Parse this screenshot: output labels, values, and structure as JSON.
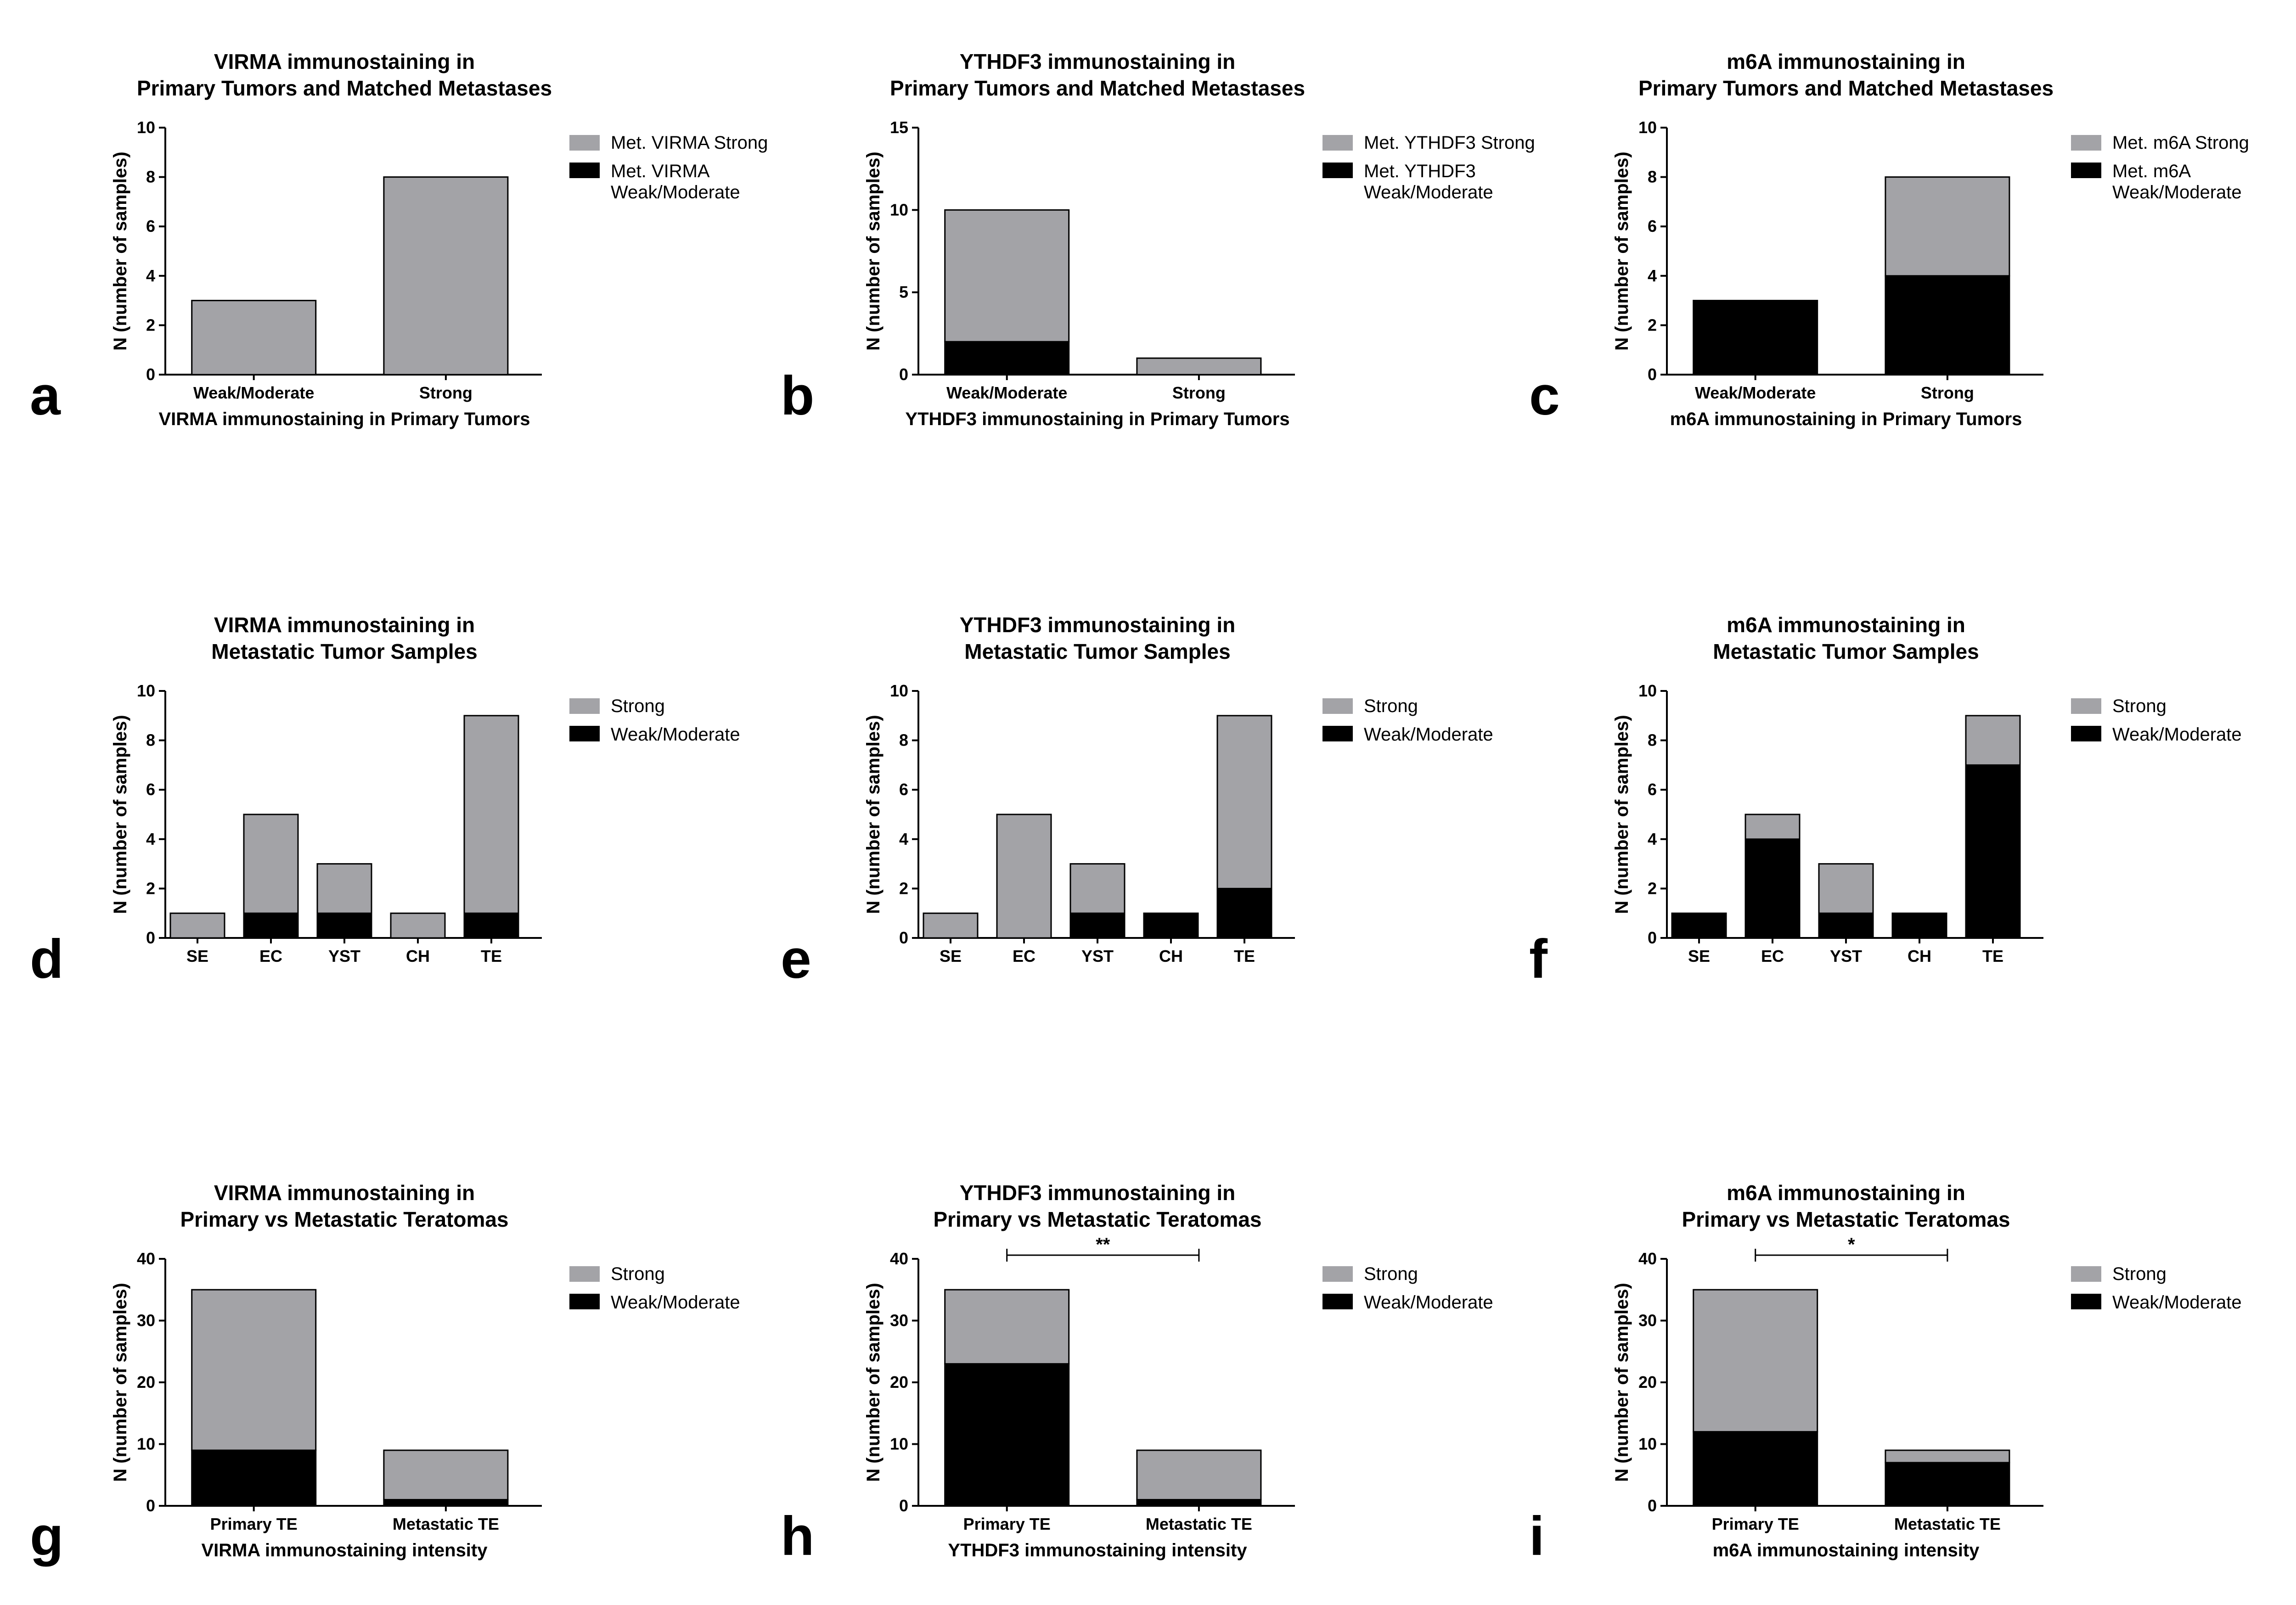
{
  "colors": {
    "strong": "#a3a3a7",
    "weak": "#000000"
  },
  "chart_data": [
    {
      "panel": "a",
      "type": "bar",
      "stacked": true,
      "title": [
        "VIRMA immunostaining in",
        "Primary Tumors and Matched Metastases"
      ],
      "xlabel": "VIRMA immunostaining in Primary Tumors",
      "ylabel": "N (number of samples)",
      "ylim": [
        0,
        10
      ],
      "yticks": [
        "0",
        "2",
        "4",
        "6",
        "8",
        "10"
      ],
      "categories": [
        "Weak/Moderate",
        "Strong"
      ],
      "legend": [
        "Met. VIRMA Strong",
        "Met. VIRMA\nWeak/Moderate"
      ],
      "series": [
        {
          "values": [
            0,
            0
          ]
        },
        {
          "values": [
            3,
            8
          ]
        }
      ]
    },
    {
      "panel": "b",
      "type": "bar",
      "stacked": true,
      "title": [
        "YTHDF3 immunostaining in",
        "Primary Tumors and Matched Metastases"
      ],
      "xlabel": "YTHDF3 immunostaining in Primary Tumors",
      "ylabel": "N (number of samples)",
      "ylim": [
        0,
        15
      ],
      "yticks": [
        "0",
        "5",
        "10",
        "15"
      ],
      "categories": [
        "Weak/Moderate",
        "Strong"
      ],
      "legend": [
        "Met. YTHDF3 Strong",
        "Met. YTHDF3\nWeak/Moderate"
      ],
      "series": [
        {
          "values": [
            2,
            0
          ]
        },
        {
          "values": [
            8,
            1
          ]
        }
      ]
    },
    {
      "panel": "c",
      "type": "bar",
      "stacked": true,
      "title": [
        "m6A immunostaining in",
        "Primary Tumors and Matched Metastases"
      ],
      "xlabel": "m6A immunostaining in Primary Tumors",
      "ylabel": "N (number of samples)",
      "ylim": [
        0,
        10
      ],
      "yticks": [
        "0",
        "2",
        "4",
        "6",
        "8",
        "10"
      ],
      "categories": [
        "Weak/Moderate",
        "Strong"
      ],
      "legend": [
        "Met. m6A Strong",
        "Met. m6A\nWeak/Moderate"
      ],
      "series": [
        {
          "values": [
            3,
            4
          ]
        },
        {
          "values": [
            0,
            4
          ]
        }
      ]
    },
    {
      "panel": "d",
      "type": "bar",
      "stacked": true,
      "title": [
        "VIRMA immunostaining in",
        "Metastatic Tumor Samples"
      ],
      "xlabel": "",
      "ylabel": "N (number of samples)",
      "ylim": [
        0,
        10
      ],
      "yticks": [
        "0",
        "2",
        "4",
        "6",
        "8",
        "10"
      ],
      "categories": [
        "SE",
        "EC",
        "YST",
        "CH",
        "TE"
      ],
      "legend": [
        "Strong",
        "Weak/Moderate"
      ],
      "series": [
        {
          "values": [
            0,
            1,
            1,
            0,
            1
          ]
        },
        {
          "values": [
            1,
            4,
            2,
            1,
            8
          ]
        }
      ]
    },
    {
      "panel": "e",
      "type": "bar",
      "stacked": true,
      "title": [
        "YTHDF3 immunostaining in",
        "Metastatic Tumor Samples"
      ],
      "xlabel": "",
      "ylabel": "N (number of samples)",
      "ylim": [
        0,
        10
      ],
      "yticks": [
        "0",
        "2",
        "4",
        "6",
        "8",
        "10"
      ],
      "categories": [
        "SE",
        "EC",
        "YST",
        "CH",
        "TE"
      ],
      "legend": [
        "Strong",
        "Weak/Moderate"
      ],
      "series": [
        {
          "values": [
            0,
            0,
            1,
            1,
            2
          ]
        },
        {
          "values": [
            1,
            5,
            2,
            0,
            7
          ]
        }
      ]
    },
    {
      "panel": "f",
      "type": "bar",
      "stacked": true,
      "title": [
        "m6A immunostaining in",
        "Metastatic Tumor Samples"
      ],
      "xlabel": "",
      "ylabel": "N (number of samples)",
      "ylim": [
        0,
        10
      ],
      "yticks": [
        "0",
        "2",
        "4",
        "6",
        "8",
        "10"
      ],
      "categories": [
        "SE",
        "EC",
        "YST",
        "CH",
        "TE"
      ],
      "legend": [
        "Strong",
        "Weak/Moderate"
      ],
      "series": [
        {
          "values": [
            1,
            4,
            1,
            1,
            7
          ]
        },
        {
          "values": [
            0,
            1,
            2,
            0,
            2
          ]
        }
      ]
    },
    {
      "panel": "g",
      "type": "bar",
      "stacked": true,
      "title": [
        "VIRMA immunostaining in",
        "Primary vs Metastatic Teratomas"
      ],
      "xlabel": "VIRMA immunostaining intensity",
      "ylabel": "N (number of samples)",
      "ylim": [
        0,
        40
      ],
      "yticks": [
        "0",
        "10",
        "20",
        "30",
        "40"
      ],
      "categories": [
        "Primary TE",
        "Metastatic TE"
      ],
      "legend": [
        "Strong",
        "Weak/Moderate"
      ],
      "series": [
        {
          "values": [
            9,
            1
          ]
        },
        {
          "values": [
            26,
            8
          ]
        }
      ]
    },
    {
      "panel": "h",
      "type": "bar",
      "stacked": true,
      "title": [
        "YTHDF3 immunostaining in",
        "Primary vs Metastatic Teratomas"
      ],
      "xlabel": "YTHDF3 immunostaining intensity",
      "ylabel": "N (number of samples)",
      "ylim": [
        0,
        40
      ],
      "yticks": [
        "0",
        "10",
        "20",
        "30",
        "40"
      ],
      "categories": [
        "Primary TE",
        "Metastatic TE"
      ],
      "legend": [
        "Strong",
        "Weak/Moderate"
      ],
      "significance": "**",
      "series": [
        {
          "values": [
            23,
            1
          ]
        },
        {
          "values": [
            12,
            8
          ]
        }
      ]
    },
    {
      "panel": "i",
      "type": "bar",
      "stacked": true,
      "title": [
        "m6A immunostaining in",
        "Primary vs Metastatic Teratomas"
      ],
      "xlabel": "m6A immunostaining intensity",
      "ylabel": "N (number of samples)",
      "ylim": [
        0,
        40
      ],
      "yticks": [
        "0",
        "10",
        "20",
        "30",
        "40"
      ],
      "categories": [
        "Primary TE",
        "Metastatic TE"
      ],
      "legend": [
        "Strong",
        "Weak/Moderate"
      ],
      "significance": "*",
      "series": [
        {
          "values": [
            12,
            7
          ]
        },
        {
          "values": [
            23,
            2
          ]
        }
      ]
    }
  ]
}
